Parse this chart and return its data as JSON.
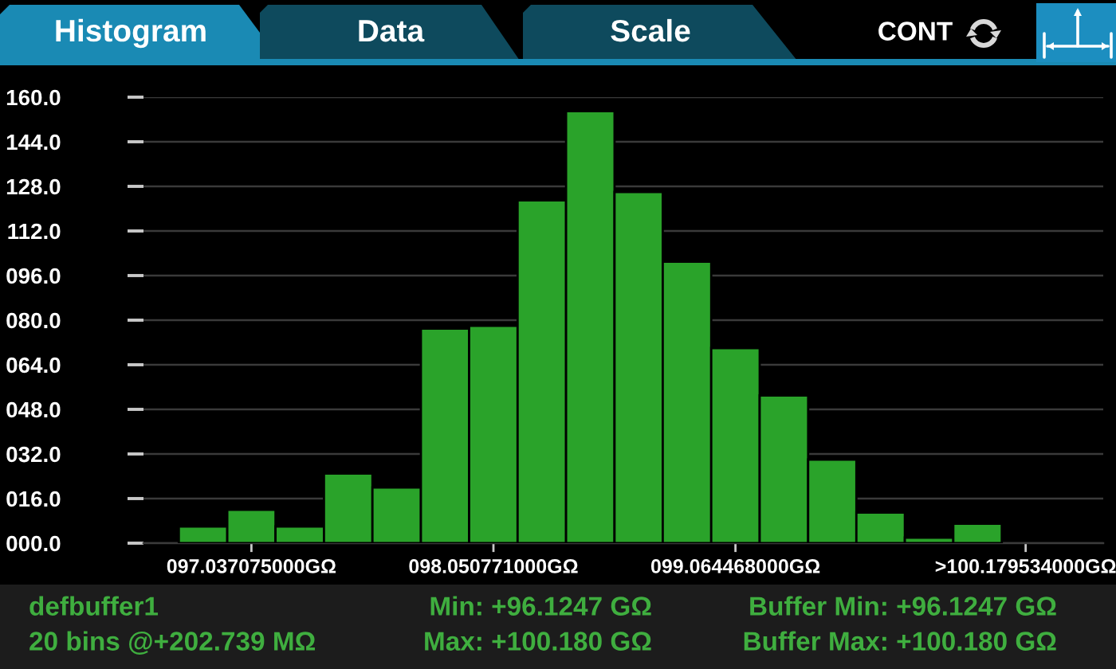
{
  "chart_data": {
    "type": "histogram",
    "title": "Histogram",
    "bins": [
      96.733,
      96.936,
      97.138,
      97.341,
      97.544,
      97.747,
      97.949,
      98.152,
      98.355,
      98.558,
      98.76,
      98.963,
      99.166,
      99.369,
      99.571,
      99.774,
      99.977,
      100.18
    ],
    "values": [
      6,
      12,
      6,
      25,
      20,
      77,
      78,
      123,
      155,
      126,
      101,
      70,
      53,
      30,
      11,
      2,
      7
    ],
    "color": "#2aa32a",
    "xlim": [
      96.585,
      100.605
    ],
    "xticks": [
      {
        "value": 97.037075,
        "label": "097.037075000GΩ"
      },
      {
        "value": 98.050771,
        "label": "098.050771000GΩ"
      },
      {
        "value": 99.064468,
        "label": "099.064468000GΩ"
      },
      {
        "value": 100.28,
        "label": ">100.179534000GΩ"
      }
    ],
    "ylim": [
      0,
      160
    ],
    "yticks": [
      {
        "value": 0,
        "label": "000.0"
      },
      {
        "value": 16,
        "label": "016.0"
      },
      {
        "value": 32,
        "label": "032.0"
      },
      {
        "value": 48,
        "label": "048.0"
      },
      {
        "value": 64,
        "label": "064.0"
      },
      {
        "value": 80,
        "label": "080.0"
      },
      {
        "value": 96,
        "label": "096.0"
      },
      {
        "value": 112,
        "label": "112.0"
      },
      {
        "value": 128,
        "label": "128.0"
      },
      {
        "value": 144,
        "label": "144.0"
      },
      {
        "value": 160,
        "label": "160.0"
      }
    ],
    "grid": "y",
    "annotations": [
      "Data",
      "Scale",
      "CONT",
      "defbuffer1",
      "20 bins @+202.739 MΩ",
      "Min: +96.1247 GΩ",
      "Max: +100.180 GΩ",
      "Buffer Min: +96.1247 GΩ",
      "Buffer Max: +100.180 GΩ"
    ]
  }
}
